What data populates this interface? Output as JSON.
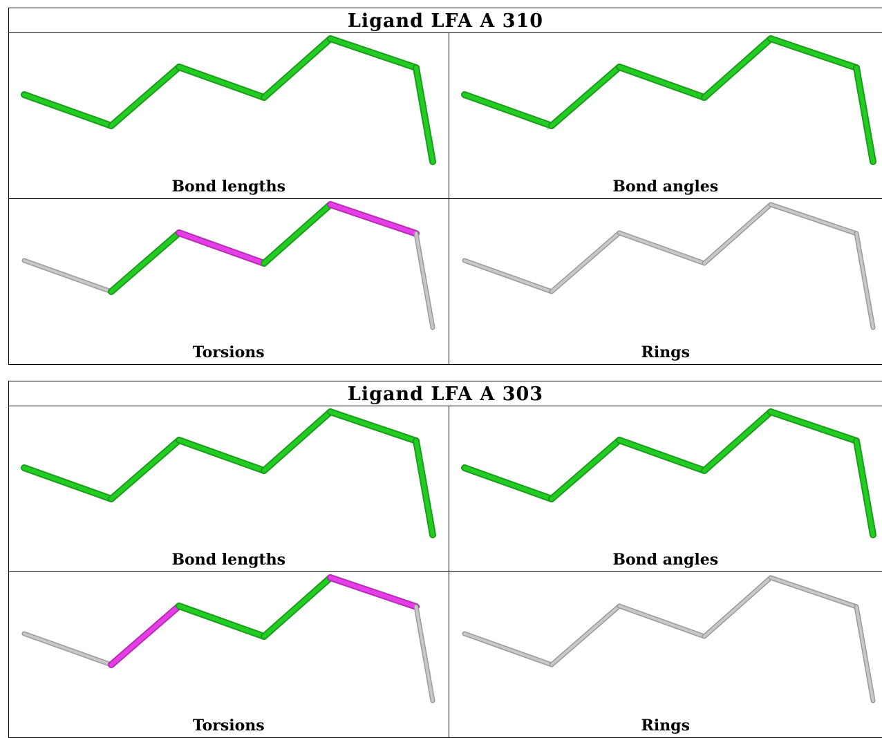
{
  "ligands": [
    {
      "title": "Ligand LFA A 310",
      "panels": [
        {
          "label": "Bond lengths",
          "bond_colors": [
            "green",
            "green",
            "green",
            "green",
            "green",
            "green",
            "green"
          ]
        },
        {
          "label": "Bond angles",
          "bond_colors": [
            "green",
            "green",
            "green",
            "green",
            "green",
            "green",
            "green"
          ]
        },
        {
          "label": "Torsions",
          "bond_colors": [
            "gray",
            "green",
            "magenta",
            "green",
            "magenta",
            "gray",
            "gray"
          ]
        },
        {
          "label": "Rings",
          "bond_colors": [
            "gray",
            "gray",
            "gray",
            "gray",
            "gray",
            "gray",
            "gray"
          ]
        }
      ]
    },
    {
      "title": "Ligand LFA A 303",
      "panels": [
        {
          "label": "Bond lengths",
          "bond_colors": [
            "green",
            "green",
            "green",
            "green",
            "green",
            "green",
            "green"
          ]
        },
        {
          "label": "Bond angles",
          "bond_colors": [
            "green",
            "green",
            "green",
            "green",
            "green",
            "green",
            "green"
          ]
        },
        {
          "label": "Torsions",
          "bond_colors": [
            "gray",
            "magenta",
            "green",
            "green",
            "magenta",
            "gray",
            "gray"
          ]
        },
        {
          "label": "Rings",
          "bond_colors": [
            "gray",
            "gray",
            "gray",
            "gray",
            "gray",
            "gray",
            "gray"
          ]
        }
      ]
    }
  ],
  "colors": {
    "green": "#22cc22",
    "magenta": "#e63ee6",
    "gray": "#c8c8c8"
  }
}
